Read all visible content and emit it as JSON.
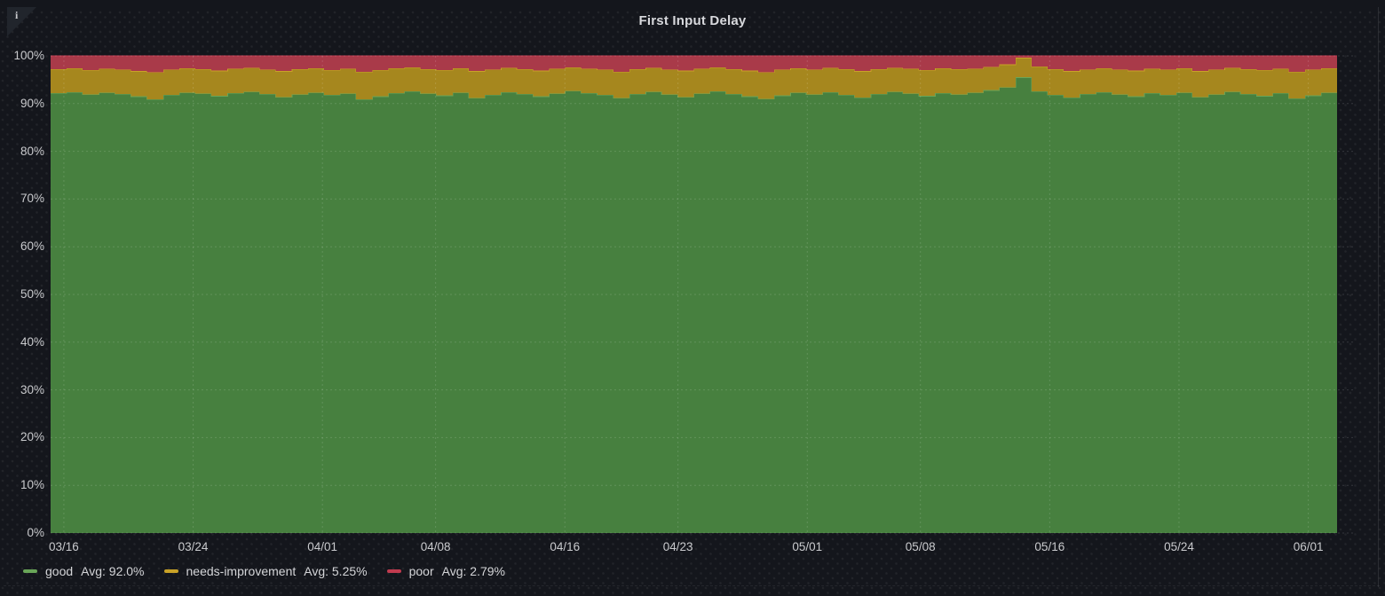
{
  "panel": {
    "title": "First Input Delay",
    "info_icon_glyph": "i"
  },
  "colors": {
    "background": "#14161c",
    "corner": "#21252c",
    "title_text": "#d8d9dd",
    "axis_text": "#c9cacd",
    "grid_line": "rgba(255,255,255,0.14)",
    "good_fill": "#47803f",
    "good_line": "#69a558",
    "needs_improvement_fill": "#a6871e",
    "needs_improvement_line": "#c9a227",
    "poor_fill": "#a93a49",
    "poor_line": "#c13b4f"
  },
  "chart_data": {
    "type": "area",
    "stacked": true,
    "unit": "percent",
    "title": "First Input Delay",
    "xlabel": "",
    "ylabel": "",
    "ylim": [
      0,
      100
    ],
    "grid": true,
    "legend_position": "bottom",
    "y_tick_labels": [
      "0%",
      "10%",
      "20%",
      "30%",
      "40%",
      "50%",
      "60%",
      "70%",
      "80%",
      "90%",
      "100%"
    ],
    "x_ticks": [
      {
        "label": "03/16",
        "day": 0
      },
      {
        "label": "03/24",
        "day": 8
      },
      {
        "label": "04/01",
        "day": 16
      },
      {
        "label": "04/08",
        "day": 23
      },
      {
        "label": "04/16",
        "day": 31
      },
      {
        "label": "04/23",
        "day": 38
      },
      {
        "label": "05/01",
        "day": 46
      },
      {
        "label": "05/08",
        "day": 53
      },
      {
        "label": "05/16",
        "day": 61
      },
      {
        "label": "05/24",
        "day": 69
      },
      {
        "label": "06/01",
        "day": 77
      }
    ],
    "x_start_offset_days": 0.82,
    "x_domain_days": 79.6,
    "series": [
      {
        "name": "good",
        "avg_text": "Avg: 92.0%",
        "color": "#69a558",
        "fill": "#47803f",
        "values": [
          92.2,
          92.4,
          91.9,
          92.3,
          92.0,
          91.5,
          90.9,
          91.8,
          92.3,
          92.1,
          91.6,
          92.2,
          92.5,
          92.0,
          91.4,
          91.9,
          92.3,
          91.8,
          92.1,
          90.9,
          91.5,
          92.2,
          92.6,
          92.1,
          91.7,
          92.3,
          91.2,
          91.8,
          92.4,
          92.0,
          91.5,
          92.1,
          92.7,
          92.2,
          91.8,
          91.2,
          92.0,
          92.5,
          91.9,
          91.4,
          92.1,
          92.6,
          92.0,
          91.5,
          91.0,
          91.7,
          92.3,
          91.9,
          92.4,
          91.8,
          91.3,
          92.0,
          92.5,
          92.1,
          91.6,
          92.2,
          91.9,
          92.3,
          92.8,
          93.4,
          95.5,
          92.6,
          91.8,
          91.3,
          92.0,
          92.4,
          91.9,
          91.5,
          92.2,
          91.8,
          92.3,
          91.4,
          91.9,
          92.5,
          92.0,
          91.6,
          92.2,
          91.1,
          91.7,
          92.3
        ]
      },
      {
        "name": "needs-improvement",
        "avg_text": "Avg: 5.25%",
        "color": "#c9a227",
        "fill": "#a6871e",
        "values": [
          5.0,
          5.0,
          5.1,
          5.0,
          5.1,
          5.3,
          5.7,
          5.3,
          5.1,
          5.1,
          5.3,
          5.1,
          5.0,
          5.1,
          5.4,
          5.3,
          5.1,
          5.2,
          5.2,
          5.8,
          5.5,
          5.2,
          5.0,
          5.1,
          5.3,
          5.1,
          5.6,
          5.3,
          5.1,
          5.2,
          5.4,
          5.2,
          4.9,
          5.1,
          5.3,
          5.5,
          5.2,
          5.0,
          5.2,
          5.5,
          5.2,
          5.0,
          5.2,
          5.4,
          5.6,
          5.4,
          5.1,
          5.2,
          5.1,
          5.4,
          5.5,
          5.2,
          5.0,
          5.2,
          5.4,
          5.2,
          5.3,
          5.0,
          4.9,
          4.8,
          4.1,
          5.2,
          5.4,
          5.5,
          5.1,
          5.0,
          5.2,
          5.4,
          5.1,
          5.3,
          5.1,
          5.4,
          5.2,
          5.0,
          5.2,
          5.4,
          5.1,
          5.6,
          5.4,
          5.1
        ]
      },
      {
        "name": "poor",
        "avg_text": "Avg: 2.79%",
        "color": "#c13b4f",
        "fill": "#a93a49",
        "values": [
          2.8,
          2.6,
          3.0,
          2.7,
          2.9,
          3.2,
          3.4,
          2.9,
          2.6,
          2.8,
          3.1,
          2.7,
          2.5,
          2.9,
          3.2,
          2.8,
          2.6,
          3.0,
          2.7,
          3.3,
          3.0,
          2.6,
          2.4,
          2.8,
          3.0,
          2.6,
          3.2,
          2.9,
          2.5,
          2.8,
          3.1,
          2.7,
          2.4,
          2.7,
          2.9,
          3.3,
          2.8,
          2.5,
          2.9,
          3.1,
          2.7,
          2.4,
          2.8,
          3.1,
          3.4,
          2.9,
          2.6,
          2.9,
          2.5,
          2.8,
          3.2,
          2.8,
          2.5,
          2.7,
          3.0,
          2.6,
          2.8,
          2.7,
          2.3,
          1.8,
          0.4,
          2.2,
          2.8,
          3.2,
          2.9,
          2.6,
          2.9,
          3.1,
          2.7,
          2.9,
          2.6,
          3.2,
          2.9,
          2.5,
          2.8,
          3.0,
          2.7,
          3.3,
          2.9,
          2.6
        ]
      }
    ]
  }
}
